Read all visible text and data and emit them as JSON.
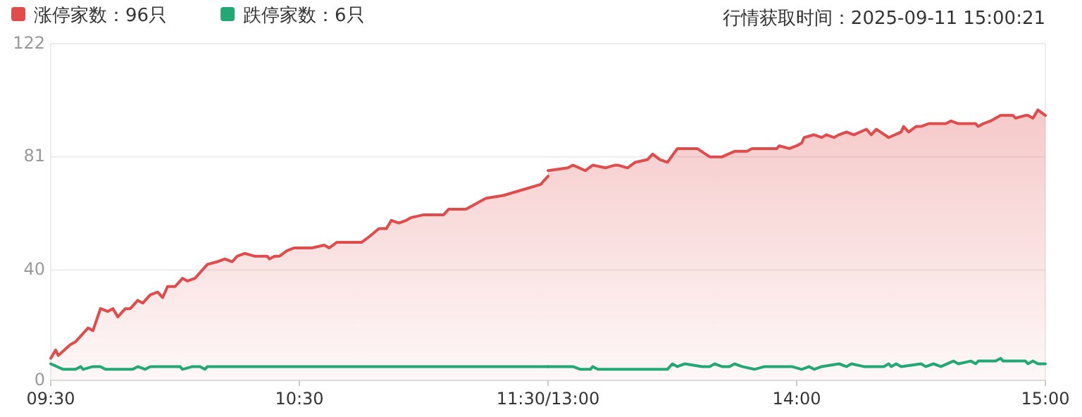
{
  "chart_data": [
    {
      "type": "area",
      "xlim": [
        9.5,
        11.5
      ],
      "xticks": [
        {
          "value": 9.5,
          "label": "09:30"
        },
        {
          "value": 10.5,
          "label": "10:30"
        },
        {
          "value": 11.5,
          "label": "11:30/13:00"
        }
      ],
      "ylim": [
        0,
        122
      ],
      "yticks": [
        0,
        40,
        81,
        122
      ],
      "grid": "y",
      "legend": "top left",
      "marker": "none",
      "line_style": "solid",
      "series": [
        {
          "name": "涨停家数：96只",
          "color": "#e04b4b",
          "x": [
            9.5,
            9.52,
            9.53,
            9.58,
            9.6,
            9.65,
            9.67,
            9.7,
            9.73,
            9.75,
            9.77,
            9.8,
            9.82,
            9.85,
            9.87,
            9.9,
            9.93,
            9.95,
            9.97,
            10,
            10.03,
            10.05,
            10.08,
            10.13,
            10.17,
            10.2,
            10.23,
            10.25,
            10.28,
            10.32,
            10.37,
            10.38,
            10.4,
            10.42,
            10.45,
            10.48,
            10.55,
            10.6,
            10.62,
            10.65,
            10.75,
            10.78,
            10.82,
            10.85,
            10.87,
            10.9,
            10.93,
            10.95,
            11,
            11.08,
            11.1,
            11.17,
            11.25,
            11.32,
            11.47,
            11.5
          ],
          "values": [
            8,
            11,
            9,
            13,
            14,
            19,
            18,
            26,
            25,
            26,
            23,
            26,
            26,
            29,
            28,
            31,
            32,
            30,
            34,
            34,
            37,
            36,
            37,
            42,
            43,
            44,
            43,
            45,
            46,
            45,
            45,
            44,
            45,
            45,
            47,
            48,
            48,
            49,
            48,
            50,
            50,
            52,
            55,
            55,
            58,
            57,
            58,
            59,
            60,
            60,
            62,
            62,
            66,
            67,
            71,
            74
          ]
        },
        {
          "type": "line",
          "name": "跌停家数：6只",
          "color": "#24a873",
          "x": [
            9.5,
            9.55,
            9.6,
            9.62,
            9.63,
            9.67,
            9.7,
            9.72,
            9.83,
            9.85,
            9.88,
            9.9,
            10.02,
            10.03,
            10.07,
            10.1,
            10.12,
            10.13,
            11.5
          ],
          "values": [
            6,
            4,
            4,
            5,
            4,
            5,
            5,
            4,
            4,
            5,
            4,
            5,
            5,
            4,
            5,
            5,
            4,
            5,
            5
          ]
        }
      ]
    },
    {
      "type": "area",
      "annotations": [
        "行情获取时间：2025-09-11 15:00:21"
      ],
      "xlim": [
        13,
        15
      ],
      "xticks": [
        {
          "value": 13,
          "label": null
        },
        {
          "value": 14,
          "label": "14:00"
        },
        {
          "value": 15,
          "label": "15:00"
        }
      ],
      "ylim": [
        0,
        122
      ],
      "yticks": [
        0,
        40,
        81,
        122
      ],
      "tick_labels": "x",
      "grid": "y",
      "marker": "none",
      "line_style": "solid",
      "series": [
        {
          "color": "#e04b4b",
          "x": [
            13,
            13.08,
            13.1,
            13.15,
            13.18,
            13.23,
            13.27,
            13.28,
            13.32,
            13.35,
            13.4,
            13.42,
            13.45,
            13.48,
            13.52,
            13.6,
            13.65,
            13.7,
            13.75,
            13.8,
            13.82,
            13.92,
            13.93,
            13.97,
            14,
            14.02,
            14.03,
            14.07,
            14.1,
            14.12,
            14.15,
            14.17,
            14.2,
            14.23,
            14.28,
            14.3,
            14.32,
            14.37,
            14.42,
            14.43,
            14.45,
            14.48,
            14.5,
            14.53,
            14.6,
            14.62,
            14.65,
            14.72,
            14.73,
            14.75,
            14.78,
            14.8,
            14.82,
            14.87,
            14.88,
            14.92,
            14.93,
            14.95,
            14.97,
            15
          ],
          "values": [
            76,
            77,
            78,
            76,
            78,
            77,
            78,
            78,
            77,
            79,
            80,
            82,
            80,
            79,
            84,
            84,
            81,
            81,
            83,
            83,
            84,
            84,
            85,
            84,
            85,
            86,
            88,
            89,
            88,
            89,
            88,
            89,
            90,
            89,
            91,
            89,
            91,
            88,
            90,
            92,
            90,
            92,
            92,
            93,
            93,
            94,
            93,
            93,
            92,
            93,
            94,
            95,
            96,
            96,
            95,
            96,
            96,
            95,
            98,
            96
          ]
        },
        {
          "type": "line",
          "color": "#24a873",
          "x": [
            13,
            13.1,
            13.13,
            13.17,
            13.18,
            13.2,
            13.48,
            13.5,
            13.52,
            13.55,
            13.62,
            13.65,
            13.67,
            13.7,
            13.73,
            13.75,
            13.78,
            13.83,
            13.87,
            13.98,
            14.02,
            14.05,
            14.07,
            14.1,
            14.17,
            14.2,
            14.22,
            14.27,
            14.35,
            14.37,
            14.38,
            14.4,
            14.42,
            14.5,
            14.52,
            14.55,
            14.58,
            14.63,
            14.65,
            14.7,
            14.72,
            14.73,
            14.8,
            14.82,
            14.83,
            14.92,
            14.93,
            14.95,
            14.97,
            15
          ],
          "values": [
            5,
            5,
            4,
            4,
            5,
            4,
            4,
            6,
            5,
            6,
            5,
            5,
            6,
            5,
            5,
            6,
            5,
            4,
            5,
            5,
            4,
            5,
            4,
            5,
            6,
            5,
            6,
            5,
            5,
            6,
            5,
            6,
            5,
            6,
            5,
            6,
            5,
            7,
            6,
            7,
            6,
            7,
            7,
            8,
            7,
            7,
            6,
            7,
            6,
            6
          ]
        }
      ]
    }
  ]
}
